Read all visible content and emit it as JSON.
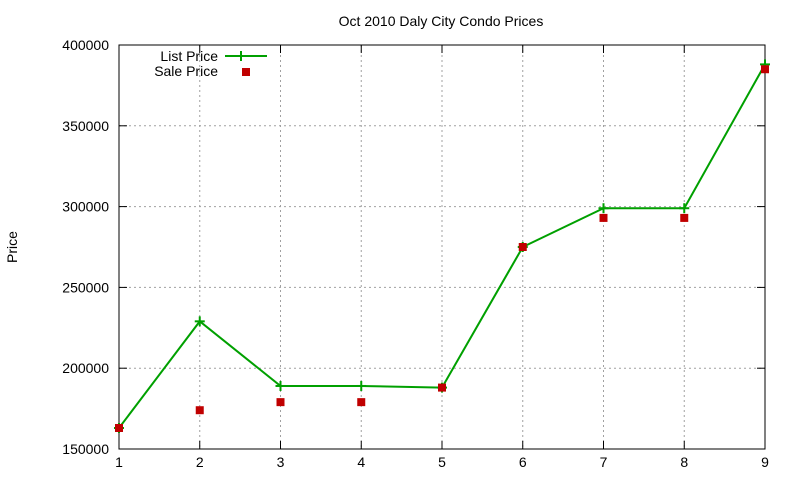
{
  "chart_data": {
    "type": "line",
    "title": "Oct 2010 Daly City Condo Prices",
    "xlabel": "",
    "ylabel": "Price",
    "x": [
      1,
      2,
      3,
      4,
      5,
      6,
      7,
      8,
      9
    ],
    "xlim": [
      1,
      9
    ],
    "ylim": [
      150000,
      400000
    ],
    "xticks": [
      "1",
      "2",
      "3",
      "4",
      "5",
      "6",
      "7",
      "8",
      "9"
    ],
    "yticks": [
      "150000",
      "200000",
      "250000",
      "300000",
      "350000",
      "400000"
    ],
    "grid": true,
    "legend_position": "top-left",
    "series": [
      {
        "name": "List Price",
        "style": "line+plus-markers",
        "color": "#00a000",
        "values": [
          163000,
          229000,
          189000,
          189000,
          188000,
          275000,
          299000,
          299000,
          388000
        ]
      },
      {
        "name": "Sale Price",
        "style": "square-points",
        "color": "#c00000",
        "values": [
          163000,
          174000,
          179000,
          179000,
          188000,
          275000,
          293000,
          293000,
          385000
        ]
      }
    ]
  }
}
